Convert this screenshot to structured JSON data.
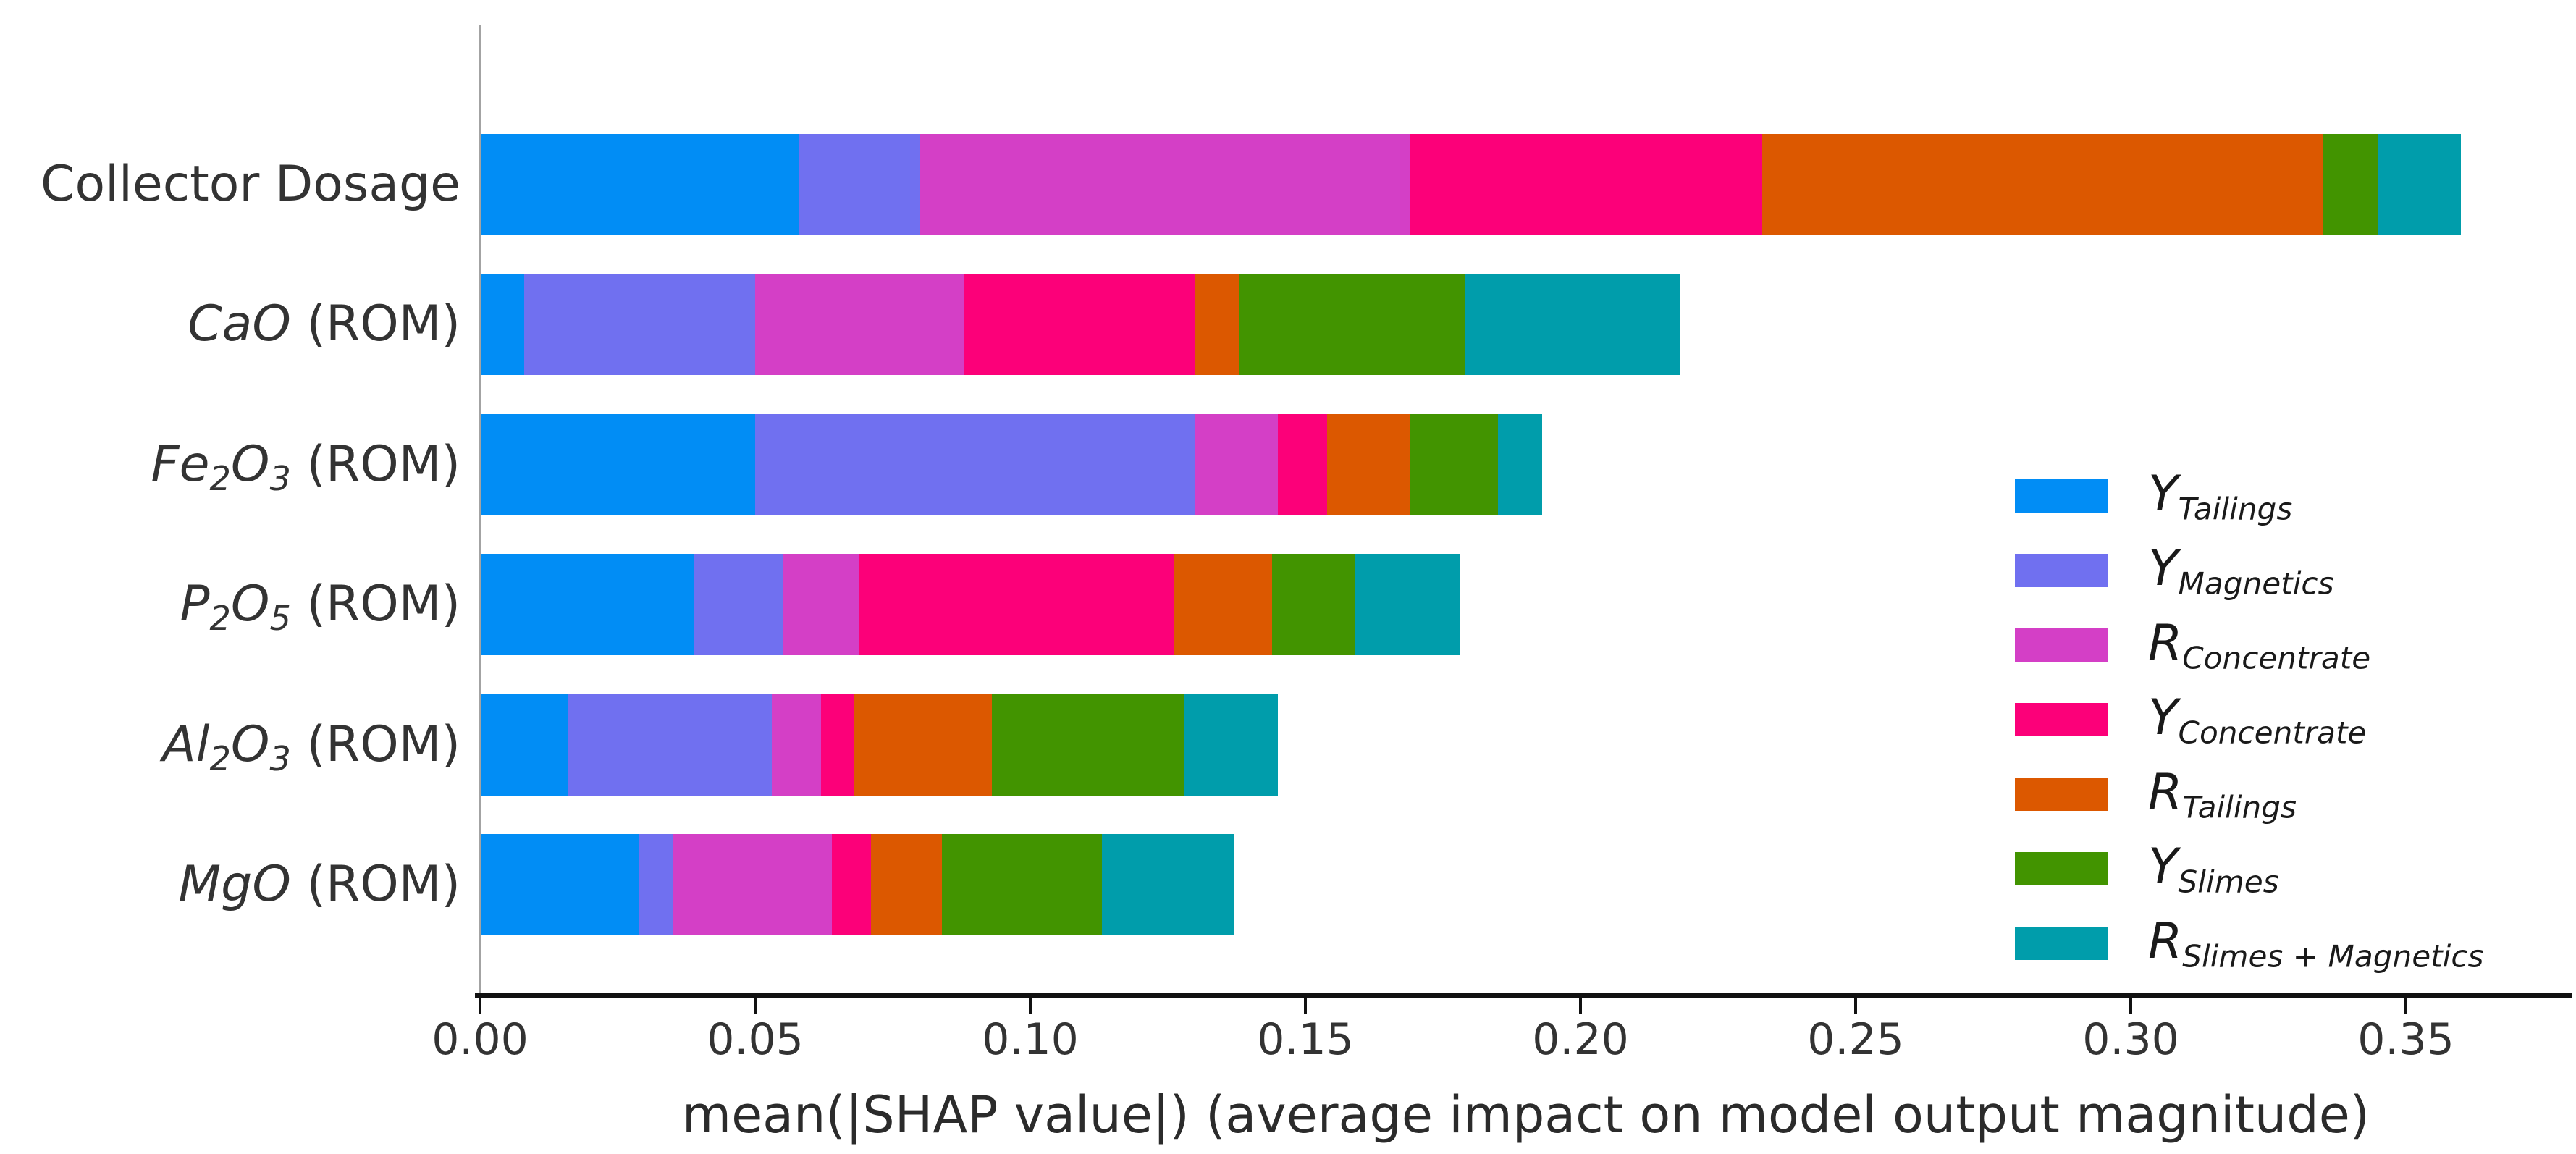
{
  "chart_data": {
    "type": "bar",
    "stacked": true,
    "orientation": "horizontal",
    "title": "",
    "xlabel": "mean(|SHAP value|) (average impact on model output magnitude)",
    "ylabel": "",
    "xlim": [
      0,
      0.38
    ],
    "grid": false,
    "legend_position": "center-right",
    "x_ticks": [
      "0.00",
      "0.05",
      "0.10",
      "0.15",
      "0.20",
      "0.25",
      "0.30",
      "0.35"
    ],
    "x_tick_values": [
      0.0,
      0.05,
      0.1,
      0.15,
      0.2,
      0.25,
      0.3,
      0.35
    ],
    "categories": [
      "Collector Dosage",
      "CaO (ROM)",
      "Fe2O3 (ROM)",
      "P2O5 (ROM)",
      "Al2O3 (ROM)",
      "MgO (ROM)"
    ],
    "category_labels_rich": [
      [
        {
          "t": "Collector Dosage"
        }
      ],
      [
        {
          "t": "CaO",
          "i": true
        },
        {
          "t": " (ROM)"
        }
      ],
      [
        {
          "t": "Fe",
          "i": true
        },
        {
          "t": "2",
          "i": true,
          "s": true
        },
        {
          "t": "O",
          "i": true
        },
        {
          "t": "3",
          "i": true,
          "s": true
        },
        {
          "t": " (ROM)"
        }
      ],
      [
        {
          "t": "P",
          "i": true
        },
        {
          "t": "2",
          "i": true,
          "s": true
        },
        {
          "t": "O",
          "i": true
        },
        {
          "t": "5",
          "i": true,
          "s": true
        },
        {
          "t": " (ROM)"
        }
      ],
      [
        {
          "t": "Al",
          "i": true
        },
        {
          "t": "2",
          "i": true,
          "s": true
        },
        {
          "t": "O",
          "i": true
        },
        {
          "t": "3",
          "i": true,
          "s": true
        },
        {
          "t": " (ROM)"
        }
      ],
      [
        {
          "t": "MgO",
          "i": true
        },
        {
          "t": " (ROM)"
        }
      ]
    ],
    "series": [
      {
        "name": "Y_Tailings",
        "legend_main": "Y",
        "legend_sub": "Tailings",
        "color": "#018df5",
        "values": [
          0.058,
          0.008,
          0.05,
          0.039,
          0.016,
          0.029
        ]
      },
      {
        "name": "Y_Magnetics",
        "legend_main": "Y",
        "legend_sub": "Magnetics",
        "color": "#7070f0",
        "values": [
          0.022,
          0.042,
          0.08,
          0.016,
          0.037,
          0.006
        ]
      },
      {
        "name": "R_Concentrate",
        "legend_main": "R",
        "legend_sub": "Concentrate",
        "color": "#d43fc6",
        "values": [
          0.089,
          0.038,
          0.015,
          0.014,
          0.009,
          0.029
        ]
      },
      {
        "name": "Y_Concentrate",
        "legend_main": "Y",
        "legend_sub": "Concentrate",
        "color": "#fc0079",
        "values": [
          0.064,
          0.042,
          0.009,
          0.057,
          0.006,
          0.007
        ]
      },
      {
        "name": "R_Tailings",
        "legend_main": "R",
        "legend_sub": "Tailings",
        "color": "#dc5800",
        "values": [
          0.102,
          0.008,
          0.015,
          0.018,
          0.025,
          0.013
        ]
      },
      {
        "name": "Y_Slimes",
        "legend_main": "Y",
        "legend_sub": "Slimes",
        "color": "#429400",
        "values": [
          0.01,
          0.041,
          0.016,
          0.015,
          0.035,
          0.029
        ]
      },
      {
        "name": "R_Slimes_Magnetics",
        "legend_main": "R",
        "legend_sub": "Slimes + Magnetics",
        "color": "#009dab",
        "values": [
          0.015,
          0.039,
          0.008,
          0.019,
          0.017,
          0.024
        ]
      }
    ],
    "bar_totals": [
      0.36,
      0.218,
      0.193,
      0.178,
      0.145,
      0.137
    ]
  }
}
